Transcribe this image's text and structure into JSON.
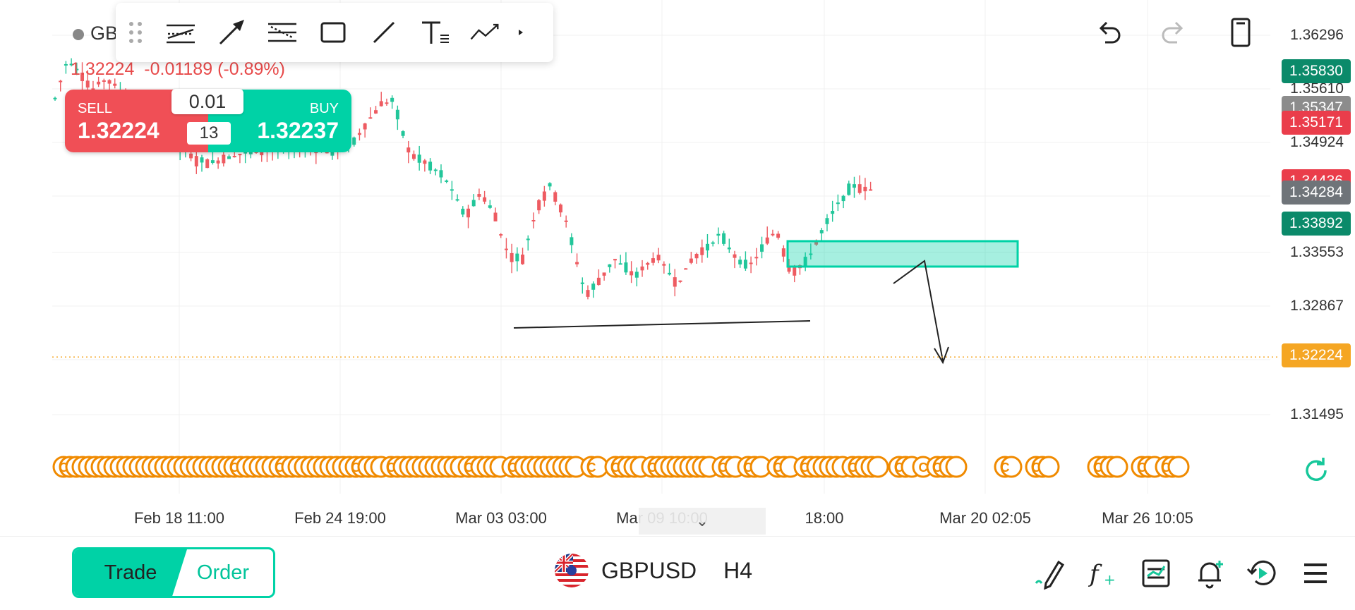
{
  "symbol": {
    "short": "GB",
    "name": "GBPUSD",
    "timeframe": "H4",
    "last_price": "1.32224",
    "change": "-0.01189 (-0.89%)"
  },
  "trade_widget": {
    "sell_label": "SELL",
    "sell_price": "1.32224",
    "buy_label": "BUY",
    "buy_price": "1.32237",
    "lot": "0.01",
    "spread": "13"
  },
  "price_axis": {
    "labels": [
      "1.36296",
      "1.35610",
      "1.34924",
      "1.33553",
      "1.32867",
      "1.31495"
    ],
    "tags": [
      {
        "text": "1.35830",
        "color": "#0b8a6a"
      },
      {
        "text": "1.35347",
        "color": "#8c8c8c"
      },
      {
        "text": "1.35171",
        "color": "#ea3d4b"
      },
      {
        "text": "1.34436",
        "color": "#ea3d4b"
      },
      {
        "text": "1.34284",
        "color": "#6f7479"
      },
      {
        "text": "1.33892",
        "color": "#0b8a6a"
      },
      {
        "text": "1.32224",
        "color": "#f5a623"
      }
    ]
  },
  "time_axis": {
    "labels": [
      "Feb 18 11:00",
      "Feb 24 19:00",
      "Mar 03 03:00",
      "Mar 09 10:00",
      "18:00",
      "Mar 20 02:05",
      "Mar 26 10:05"
    ]
  },
  "bottom_bar": {
    "trade_label": "Trade",
    "order_label": "Order"
  },
  "event_marker_letter": "C",
  "colors": {
    "up": "#22c69a",
    "down": "#ee5b61",
    "accent": "#00d2a6",
    "last_price_line": "#f5a623",
    "event": "#f08a00"
  },
  "icons": {
    "toolbar": [
      "drag-handle-icon",
      "trend-channel-icon",
      "arrow-icon",
      "fib-lines-icon",
      "rectangle-icon",
      "line-icon",
      "text-icon",
      "path-icon",
      "more-icon"
    ],
    "top_right": [
      "undo-icon",
      "redo-icon",
      "phone-layout-icon"
    ],
    "bottom_right": [
      "draw-pen-icon",
      "indicator-fx-icon",
      "chart-type-icon",
      "alert-bell-icon",
      "replay-icon",
      "menu-icon"
    ]
  }
}
